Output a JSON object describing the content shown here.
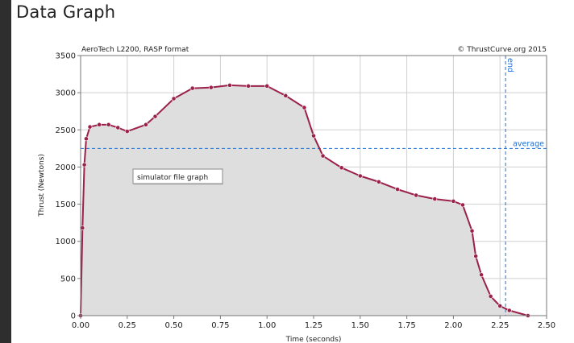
{
  "page": {
    "title": "Data Graph"
  },
  "chart_data": {
    "type": "line",
    "subtitle_left": "AeroTech L2200, RASP format",
    "subtitle_right": "© ThrustCurve.org 2015",
    "xlabel": "Time (seconds)",
    "ylabel": "Thrust (Newtons)",
    "xlim": [
      0,
      2.5
    ],
    "ylim": [
      0,
      3500
    ],
    "xticks": [
      0,
      0.25,
      0.5,
      0.75,
      1.0,
      1.25,
      1.5,
      1.75,
      2.0,
      2.25,
      2.5
    ],
    "xtick_labels": [
      "0.00",
      "0.25",
      "0.50",
      "0.75",
      "1.00",
      "1.25",
      "1.50",
      "1.75",
      "2.00",
      "2.25",
      "2.50"
    ],
    "yticks": [
      0,
      500,
      1000,
      1500,
      2000,
      2500,
      3000,
      3500
    ],
    "ytick_labels": [
      "0",
      "500",
      "1000",
      "1500",
      "2000",
      "2500",
      "3000",
      "3500"
    ],
    "grid": true,
    "area_fill": true,
    "line_color": "#9b2148",
    "fill_color": "#dedede",
    "reference_color": "#1a6fd8",
    "tooltip": "simulator file graph",
    "average": {
      "label": "average",
      "value": 2250
    },
    "end": {
      "label": "end",
      "value": 2.28
    },
    "x": [
      0.0,
      0.01,
      0.02,
      0.03,
      0.05,
      0.1,
      0.15,
      0.2,
      0.25,
      0.35,
      0.4,
      0.5,
      0.6,
      0.7,
      0.8,
      0.9,
      1.0,
      1.1,
      1.2,
      1.25,
      1.3,
      1.4,
      1.5,
      1.6,
      1.7,
      1.8,
      1.9,
      2.0,
      2.05,
      2.1,
      2.12,
      2.15,
      2.2,
      2.25,
      2.3,
      2.4
    ],
    "y": [
      0,
      1180,
      2030,
      2380,
      2540,
      2570,
      2570,
      2530,
      2480,
      2570,
      2680,
      2920,
      3060,
      3070,
      3100,
      3090,
      3090,
      2960,
      2800,
      2420,
      2150,
      1990,
      1880,
      1800,
      1700,
      1620,
      1570,
      1540,
      1490,
      1140,
      800,
      550,
      260,
      130,
      70,
      0
    ]
  }
}
